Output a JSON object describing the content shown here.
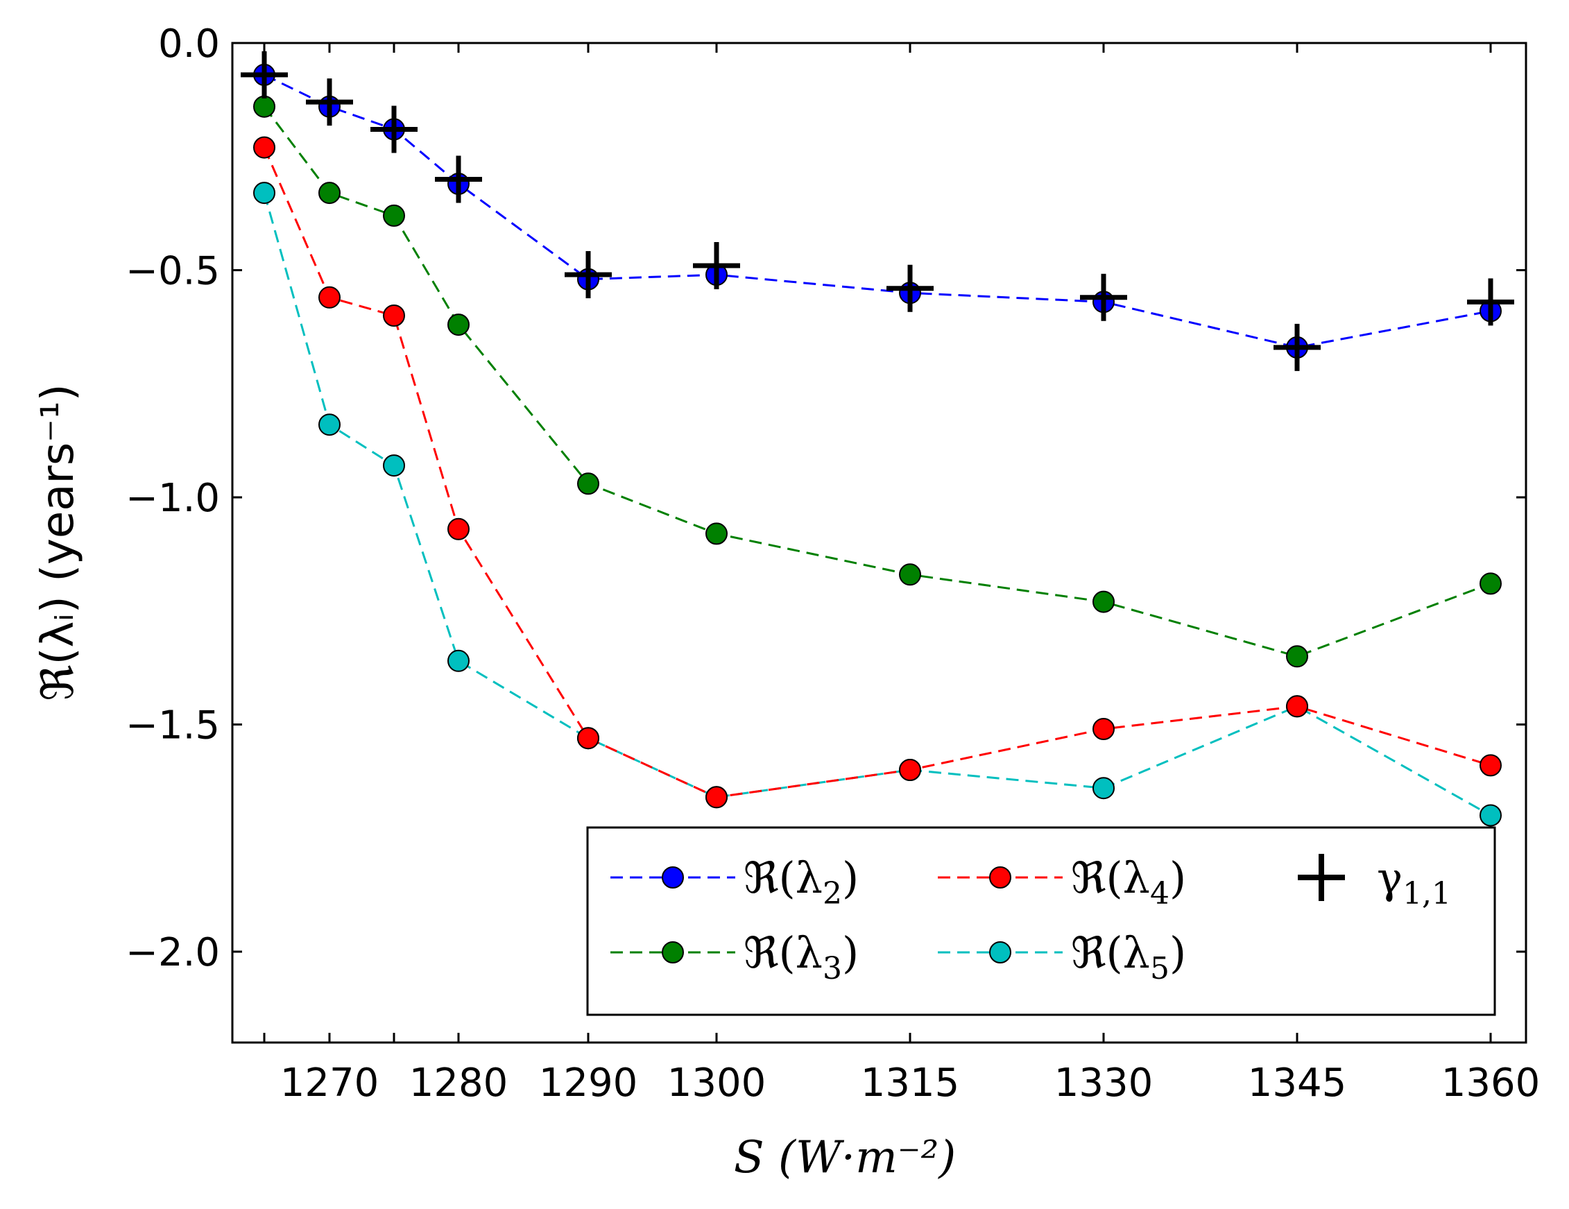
{
  "chart_data": {
    "type": "line",
    "xlabel": "S (W·m⁻²)",
    "ylabel": "ℜ(λᵢ) (years⁻¹)",
    "ylim": [
      -2.2,
      0.0
    ],
    "x_categories": [
      "1265",
      "1270",
      "1275",
      "1280",
      "1290",
      "1300",
      "1315",
      "1330",
      "1345",
      "1360"
    ],
    "x_tick_labels": [
      "1270",
      "1280",
      "1290",
      "1300",
      "1315",
      "1330",
      "1345",
      "1360"
    ],
    "y_ticks": [
      0.0,
      -0.5,
      -1.0,
      -1.5,
      -2.0
    ],
    "y_tick_labels": [
      "0.0",
      "−0.5",
      "−1.0",
      "−1.5",
      "−2.0"
    ],
    "series": [
      {
        "name": "ℜ(λ2)",
        "color": "#0000ff",
        "values": [
          -0.07,
          -0.14,
          -0.19,
          -0.31,
          -0.52,
          -0.51,
          -0.55,
          -0.57,
          -0.67,
          -0.59
        ]
      },
      {
        "name": "ℜ(λ3)",
        "color": "#008000",
        "values": [
          -0.14,
          -0.33,
          -0.38,
          -0.62,
          -0.97,
          -1.08,
          -1.17,
          -1.23,
          -1.35,
          -1.19
        ]
      },
      {
        "name": "ℜ(λ4)",
        "color": "#ff0000",
        "values": [
          -0.23,
          -0.56,
          -0.6,
          -1.07,
          -1.53,
          -1.66,
          -1.6,
          -1.51,
          -1.46,
          -1.59
        ]
      },
      {
        "name": "ℜ(λ5)",
        "color": "#00bfbf",
        "values": [
          -0.33,
          -0.84,
          -0.93,
          -1.36,
          -1.53,
          -1.66,
          -1.6,
          -1.64,
          -1.46,
          -1.7
        ]
      },
      {
        "name": "γ1,1",
        "color": "#000000",
        "marker": "plus",
        "values": [
          -0.07,
          -0.13,
          -0.19,
          -0.3,
          -0.51,
          -0.49,
          -0.54,
          -0.56,
          -0.67,
          -0.57
        ]
      }
    ],
    "legend": {
      "placement": "lower-right",
      "entries": [
        {
          "series": "ℜ(λ2)",
          "label": "ℜ(λ",
          "sub": "2",
          "tail": ")"
        },
        {
          "series": "ℜ(λ4)",
          "label": "ℜ(λ",
          "sub": "4",
          "tail": ")"
        },
        {
          "series": "γ1,1",
          "label": "γ",
          "sub": "1,1",
          "tail": ""
        },
        {
          "series": "ℜ(λ3)",
          "label": "ℜ(λ",
          "sub": "3",
          "tail": ")"
        },
        {
          "series": "ℜ(λ5)",
          "label": "ℜ(λ",
          "sub": "5",
          "tail": ")"
        }
      ]
    },
    "grid": false
  }
}
